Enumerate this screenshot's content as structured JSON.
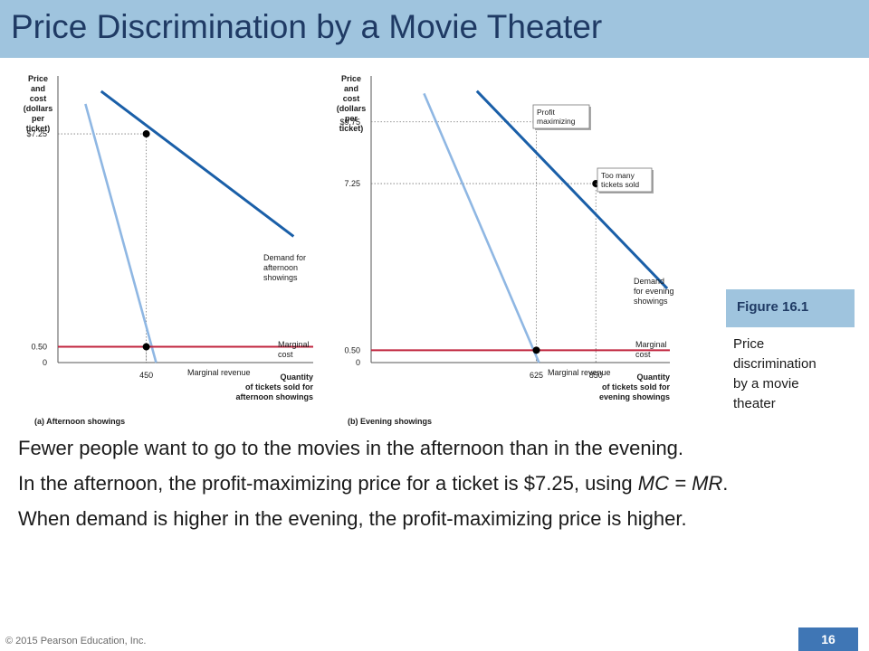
{
  "title": "Price Discrimination by a Movie Theater",
  "figure": {
    "label": "Figure 16.1",
    "caption_lines": [
      "Price",
      "discrimination",
      "by a movie",
      "theater"
    ]
  },
  "bullets": [
    {
      "text": "Fewer people want to go to the movies in the afternoon than in the evening."
    },
    {
      "text_before": "In the afternoon, the profit-maximizing price for a ticket is $7.25, using ",
      "formula": "MC = MR",
      "text_after": "."
    },
    {
      "text": "When demand is higher in the evening, the profit-maximizing price is higher."
    }
  ],
  "footer": {
    "copyright": "© 2015 Pearson Education, Inc.",
    "page": "16"
  },
  "colors": {
    "header_bg": "#9fc4de",
    "title": "#1f3a64",
    "demand": "#1a5fa8",
    "marginal_revenue": "#8fb7e3",
    "marginal_cost": "#c0243d",
    "page_box": "#3f76b5"
  },
  "chart_data": [
    {
      "type": "line",
      "panel": "(a) Afternoon showings",
      "ylabel_lines": [
        "Price",
        "and",
        "cost",
        "(dollars",
        "per",
        "ticket)"
      ],
      "xlabel_lines": [
        "Quantity",
        "of tickets sold for",
        "afternoon showings"
      ],
      "y_ticks": [
        "$7.25",
        "0.50",
        "0"
      ],
      "x_ticks": [
        "450"
      ],
      "series": [
        {
          "name": "Demand for afternoon showings",
          "label_lines": [
            "Demand for",
            "afternoon",
            "showings"
          ],
          "x": [
            220,
            1200
          ],
          "y": [
            8.6,
            4.0
          ]
        },
        {
          "name": "Marginal revenue",
          "label_lines": [
            "Marginal revenue"
          ],
          "x": [
            140,
            500
          ],
          "y": [
            8.2,
            0.0
          ]
        },
        {
          "name": "Marginal cost",
          "label_lines": [
            "Marginal",
            "cost"
          ],
          "x": [
            0,
            1300
          ],
          "y": [
            0.5,
            0.5
          ]
        }
      ],
      "points": [
        {
          "x": 450,
          "y": 7.25
        },
        {
          "x": 450,
          "y": 0.5
        }
      ]
    },
    {
      "type": "line",
      "panel": "(b) Evening showings",
      "ylabel_lines": [
        "Price",
        "and",
        "cost",
        "(dollars",
        "per",
        "ticket)"
      ],
      "xlabel_lines": [
        "Quantity",
        "of tickets sold for",
        "evening showings"
      ],
      "y_ticks": [
        "$9.75",
        "7.25",
        "0.50",
        "0"
      ],
      "x_ticks": [
        "625",
        "850"
      ],
      "series": [
        {
          "name": "Demand for evening showings",
          "label_lines": [
            "Demand",
            "for evening",
            "showings"
          ],
          "x": [
            400,
            1120
          ],
          "y": [
            11.0,
            3.0
          ]
        },
        {
          "name": "Marginal revenue",
          "label_lines": [
            "Marginal revenue"
          ],
          "x": [
            200,
            635
          ],
          "y": [
            10.9,
            0.0
          ]
        },
        {
          "name": "Marginal cost",
          "label_lines": [
            "Marginal",
            "cost"
          ],
          "x": [
            0,
            1130
          ],
          "y": [
            0.5,
            0.5
          ]
        }
      ],
      "points": [
        {
          "x": 625,
          "y": 9.75
        },
        {
          "x": 850,
          "y": 7.25
        },
        {
          "x": 625,
          "y": 0.5
        }
      ],
      "callouts": [
        {
          "lines": [
            "Profit",
            "maximizing"
          ],
          "x": 625,
          "y": 9.75
        },
        {
          "lines": [
            "Too many",
            "tickets sold"
          ],
          "x": 850,
          "y": 7.25
        }
      ]
    }
  ]
}
